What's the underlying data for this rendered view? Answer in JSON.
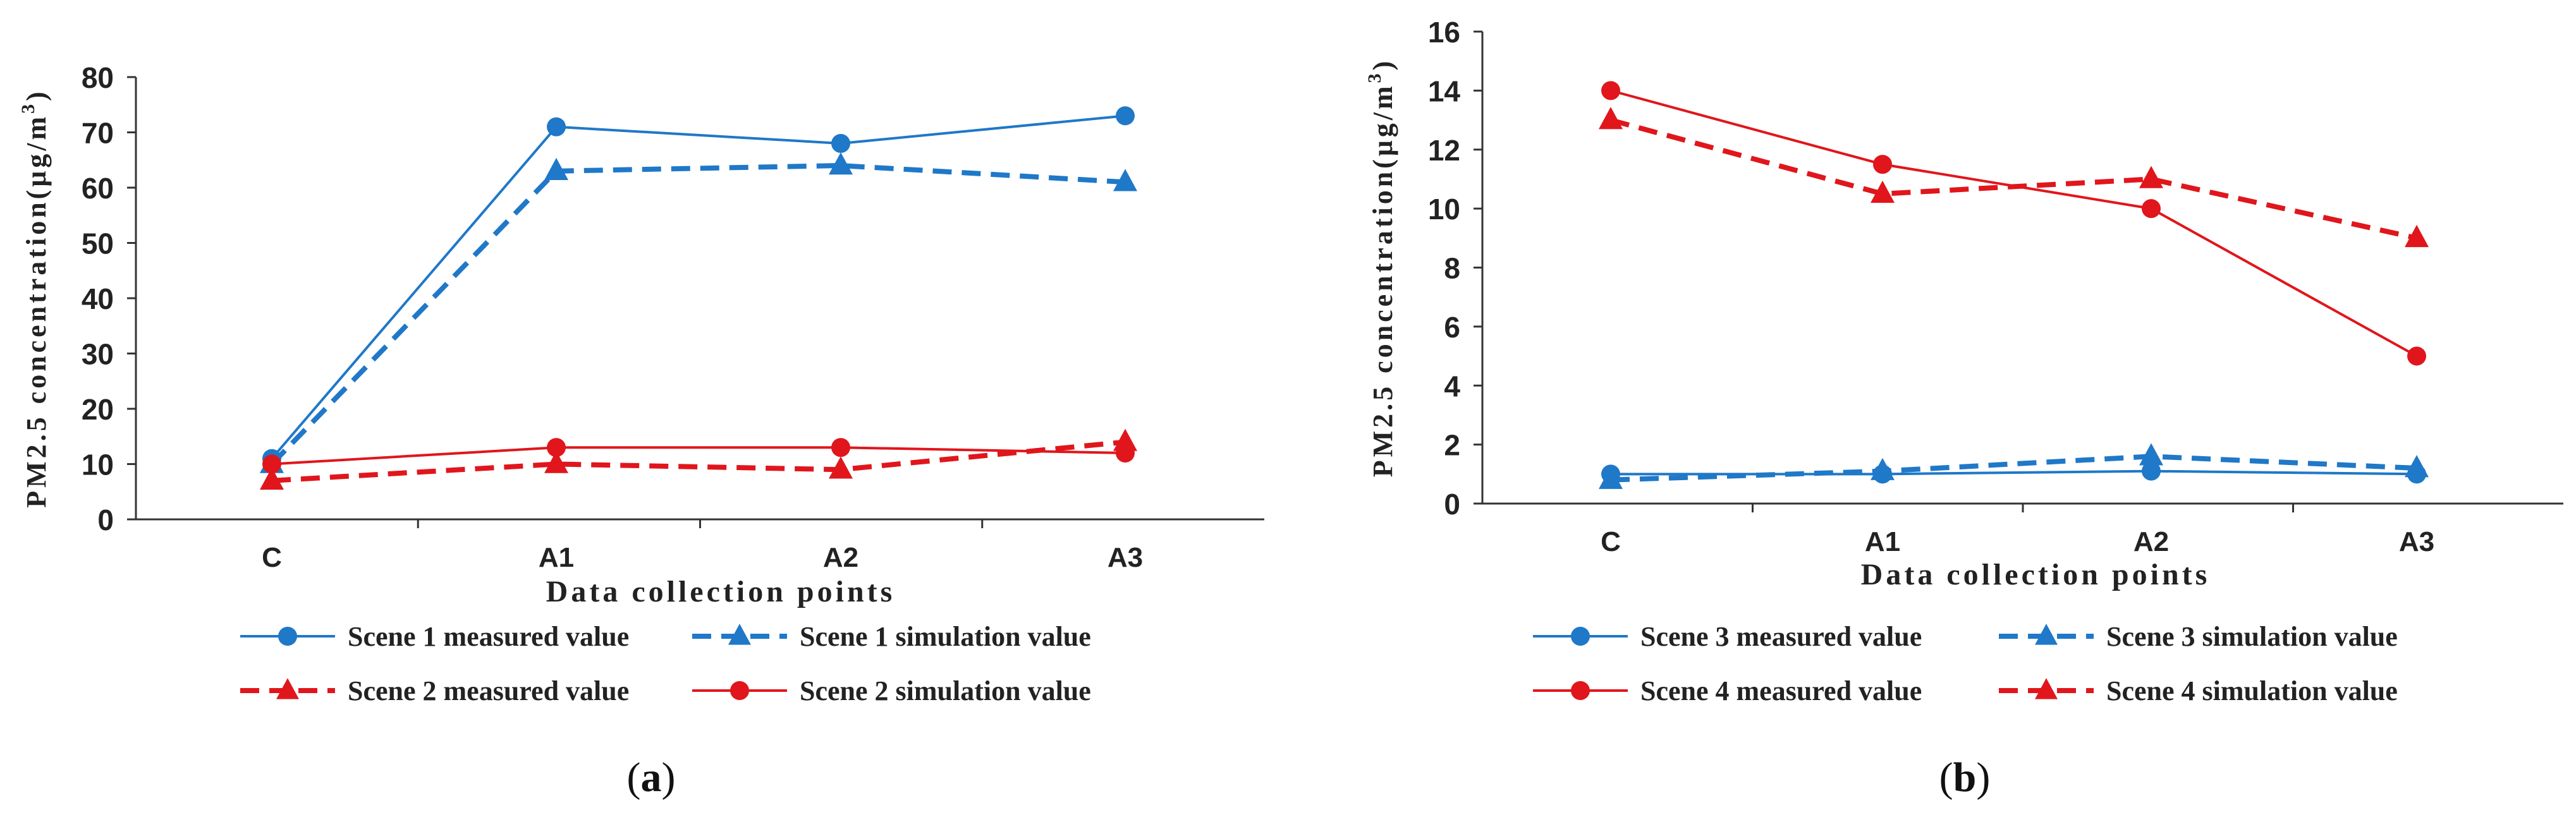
{
  "chart_data": [
    {
      "type": "line",
      "panel_label": "(a)",
      "panel_letter": "a",
      "xlabel": "Data collection points",
      "ylabel": "PM2.5 concentration(μg/m³)",
      "ylabel_main": "PM2.5 concentration(μg/m",
      "ylabel_sup": "3",
      "ylabel_tail": ")",
      "categories": [
        "C",
        "A1",
        "A2",
        "A3"
      ],
      "ylim": [
        0,
        80
      ],
      "yticks": [
        0,
        10,
        20,
        30,
        40,
        50,
        60,
        70,
        80
      ],
      "grid": false,
      "legend_position": "bottom",
      "series": [
        {
          "name": "Scene 1 measured value",
          "values": [
            11,
            71,
            68,
            73
          ],
          "color": "#1f78c8",
          "dash": "solid",
          "marker": "circle"
        },
        {
          "name": "Scene 1 simulation value",
          "values": [
            10,
            63,
            64,
            61
          ],
          "color": "#1f78c8",
          "dash": "dashed",
          "marker": "triangle"
        },
        {
          "name": "Scene 2 measured value",
          "values": [
            7,
            10,
            9,
            14
          ],
          "color": "#e0161c",
          "dash": "dashed",
          "marker": "triangle"
        },
        {
          "name": "Scene 2 simulation value",
          "values": [
            10,
            13,
            13,
            12
          ],
          "color": "#e0161c",
          "dash": "solid",
          "marker": "circle"
        }
      ]
    },
    {
      "type": "line",
      "panel_label": "(b)",
      "panel_letter": "b",
      "xlabel": "Data collection points",
      "ylabel": "PM2.5 concentration(μg/m³)",
      "ylabel_main": "PM2.5 concentration(μg/m",
      "ylabel_sup": "3",
      "ylabel_tail": ")",
      "categories": [
        "C",
        "A1",
        "A2",
        "A3"
      ],
      "ylim": [
        0,
        16
      ],
      "yticks": [
        0,
        2,
        4,
        6,
        8,
        10,
        12,
        14,
        16
      ],
      "grid": false,
      "legend_position": "bottom",
      "series": [
        {
          "name": "Scene 3 measured value",
          "values": [
            1.0,
            1.0,
            1.1,
            1.0
          ],
          "color": "#1f78c8",
          "dash": "solid",
          "marker": "circle"
        },
        {
          "name": "Scene 3 simulation value",
          "values": [
            0.8,
            1.1,
            1.6,
            1.2
          ],
          "color": "#1f78c8",
          "dash": "dashed",
          "marker": "triangle"
        },
        {
          "name": "Scene 4 measured value",
          "values": [
            14,
            11.5,
            10,
            5
          ],
          "color": "#e0161c",
          "dash": "solid",
          "marker": "circle"
        },
        {
          "name": "Scene 4 simulation value",
          "values": [
            13,
            10.5,
            11,
            9
          ],
          "color": "#e0161c",
          "dash": "dashed",
          "marker": "triangle"
        }
      ]
    }
  ]
}
